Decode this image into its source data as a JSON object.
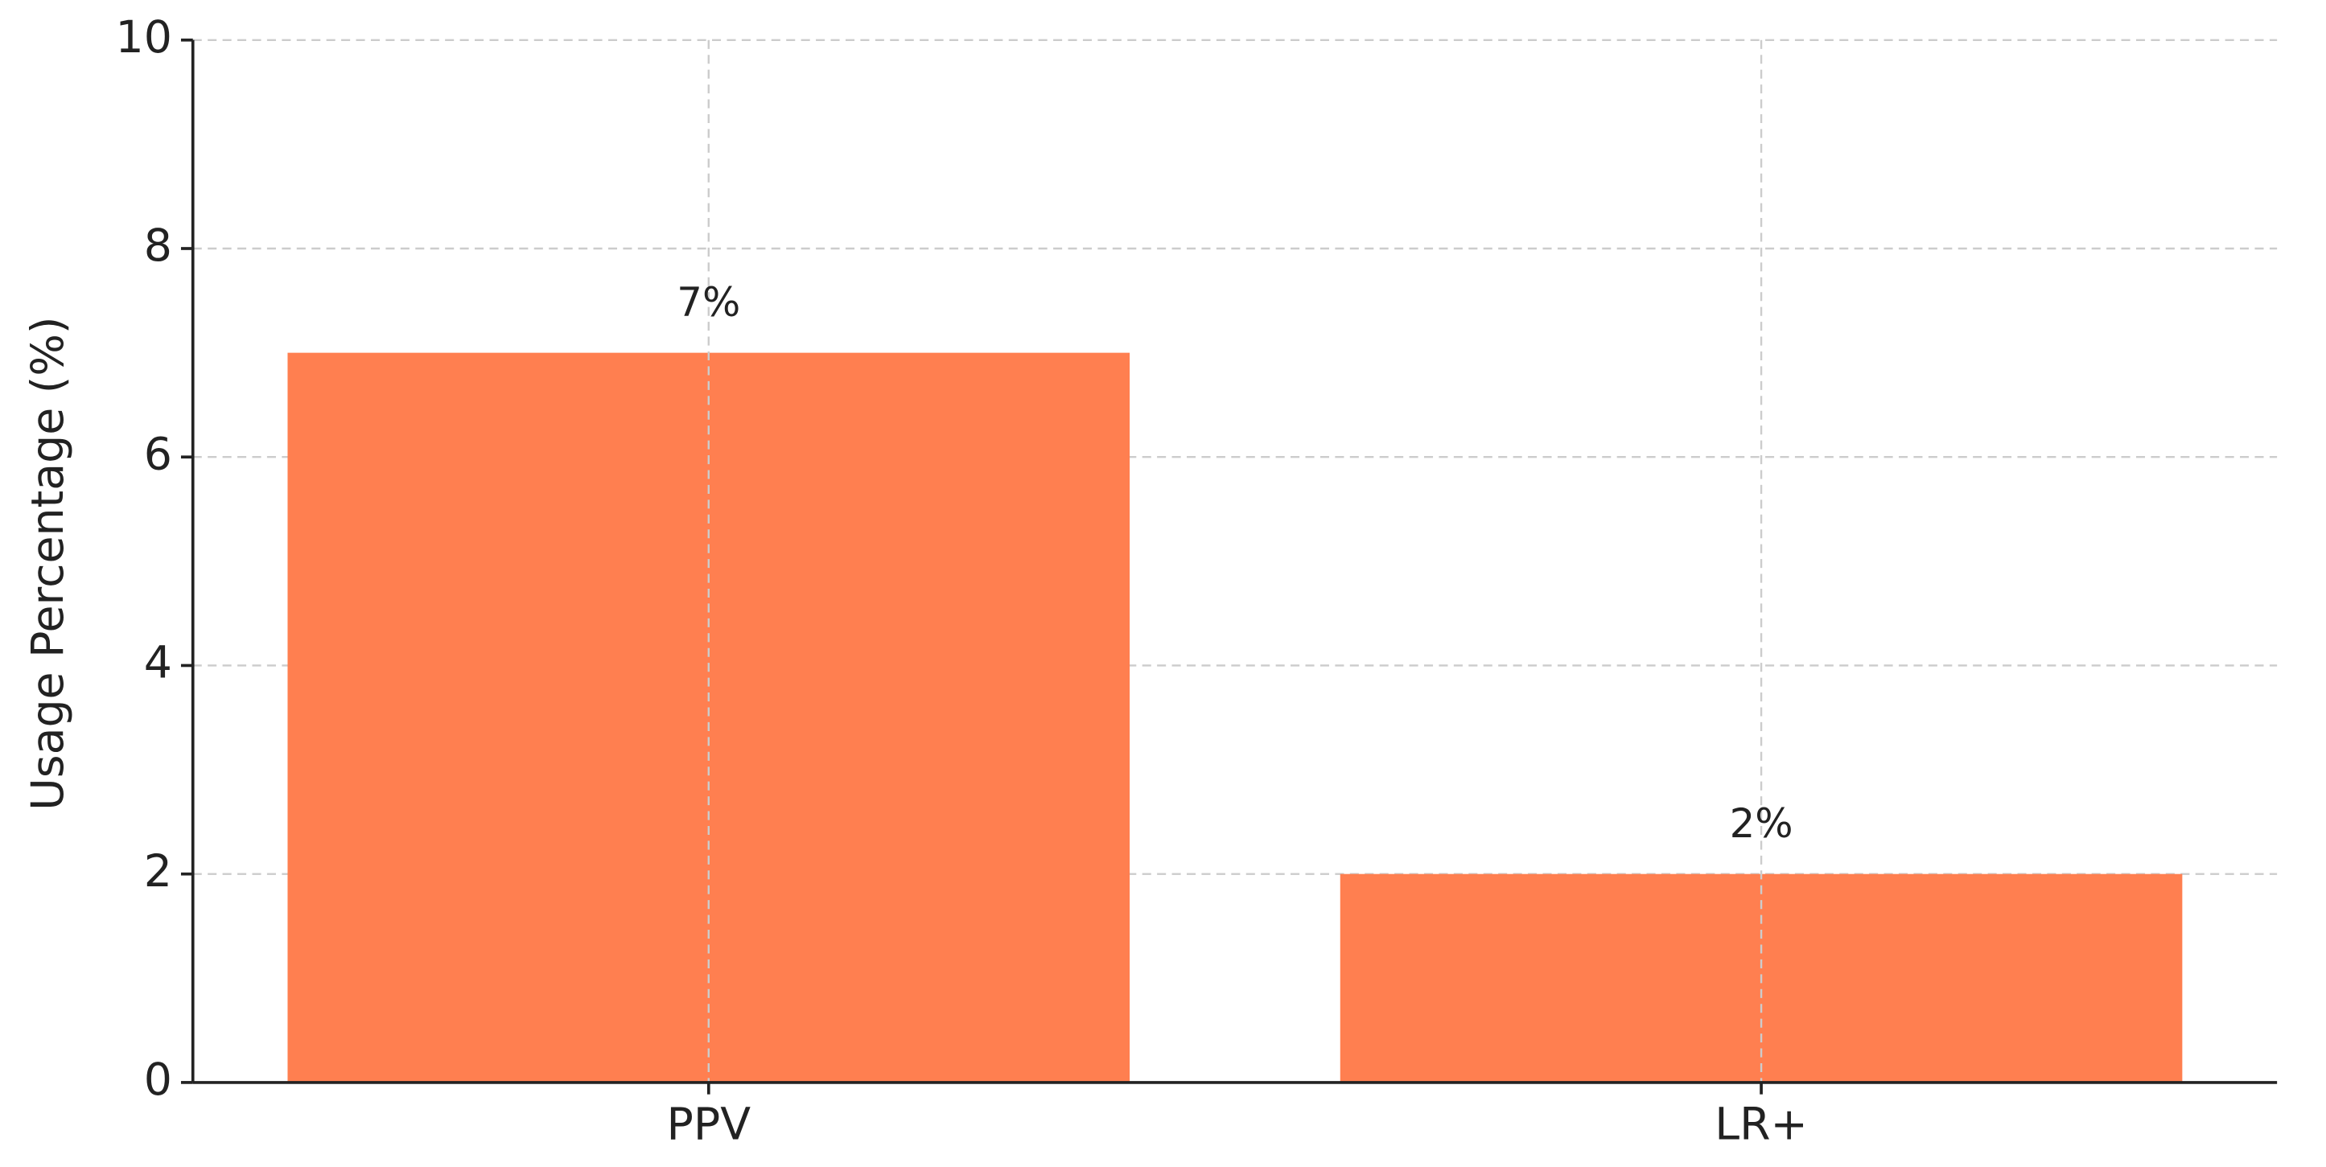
{
  "chart_data": {
    "type": "bar",
    "y_label": "Usage Percentage (%)",
    "categories": [
      "PPV",
      "LR+"
    ],
    "values": [
      7,
      2
    ],
    "value_labels": [
      "7%",
      "2%"
    ],
    "color": "#ff7f50",
    "ylim": [
      0,
      10
    ],
    "yticks": [
      0,
      2,
      4,
      6,
      8,
      10
    ],
    "grid": true
  }
}
